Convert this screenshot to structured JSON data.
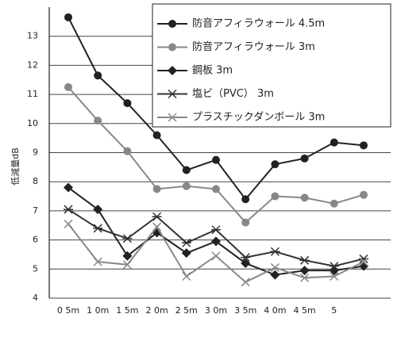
{
  "chart_data": {
    "type": "line",
    "y_label": "低減量dB",
    "categories": [
      "0 5m",
      "1 0m",
      "1 5m",
      "2 0m",
      "2 5m",
      "3 0m",
      "3 5m",
      "4 0m",
      "4 5m",
      "5",
      null
    ],
    "ylim": [
      4,
      14
    ],
    "yticks": [
      4,
      5,
      6,
      7,
      8,
      9,
      10,
      11,
      12,
      13
    ],
    "grid": true,
    "legend": "top-right",
    "series": [
      {
        "name": "防音アフィラウォール 4.5m",
        "color": "#222222",
        "marker": "circle",
        "values": [
          13.65,
          11.65,
          10.7,
          9.6,
          8.4,
          8.75,
          7.4,
          8.6,
          8.8,
          9.35,
          9.25
        ]
      },
      {
        "name": "防音アフィラウォール 3m",
        "color": "#888888",
        "marker": "circle",
        "values": [
          11.25,
          10.1,
          9.05,
          7.75,
          7.85,
          7.75,
          6.6,
          7.5,
          7.45,
          7.25,
          7.55
        ]
      },
      {
        "name": "鋼板 3m",
        "color": "#222222",
        "marker": "diamond",
        "values": [
          7.8,
          7.05,
          5.45,
          6.25,
          5.55,
          5.95,
          5.2,
          4.8,
          4.95,
          4.95,
          5.1
        ]
      },
      {
        "name": "塩ビ（PVC） 3m",
        "color": "#333333",
        "marker": "asterisk",
        "values": [
          7.05,
          6.4,
          6.05,
          6.8,
          5.9,
          6.35,
          5.4,
          5.6,
          5.3,
          5.1,
          5.35
        ]
      },
      {
        "name": "プラスチックダンボール 3m",
        "color": "#888888",
        "marker": "x",
        "values": [
          6.55,
          5.25,
          5.15,
          6.45,
          4.75,
          5.45,
          4.55,
          5.05,
          4.7,
          4.75,
          5.25
        ]
      }
    ]
  }
}
